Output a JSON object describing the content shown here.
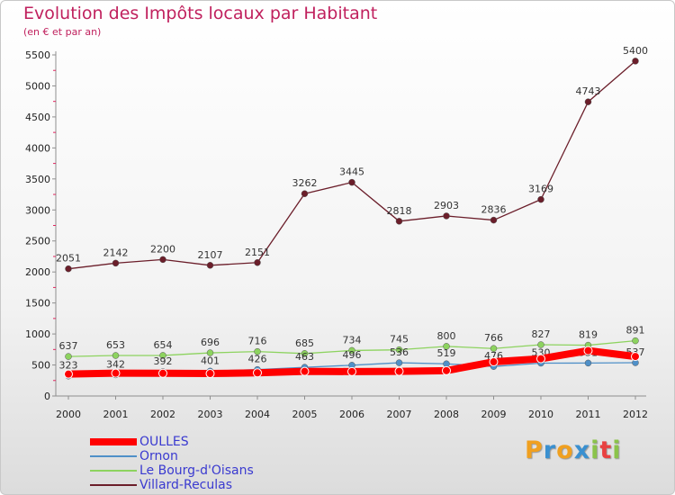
{
  "header": {
    "title": "Evolution des Impôts locaux par Habitant",
    "subtitle": "(en € et par an)"
  },
  "brand": {
    "logo_text": "Proxiti"
  },
  "colors": {
    "title": "#c0215e",
    "axis": "#8f8f8f",
    "tick_label": "#222222",
    "legend_label": "#3a3ad0",
    "grid_tick": "#e0245e"
  },
  "chart_data": {
    "type": "line",
    "title": "Evolution des Impôts locaux par Habitant",
    "subtitle": "(en € et par an)",
    "xlabel": "",
    "ylabel": "",
    "x": [
      2000,
      2001,
      2002,
      2003,
      2004,
      2005,
      2006,
      2007,
      2008,
      2009,
      2010,
      2011,
      2012
    ],
    "x_tick_labels": [
      "2000",
      "2001",
      "2002",
      "2003",
      "2004",
      "2005",
      "2006",
      "2007",
      "2008",
      "2009",
      "2010",
      "2011",
      "2012"
    ],
    "ylim": [
      0,
      5500
    ],
    "y_ticks": [
      0,
      500,
      1000,
      1500,
      2000,
      2500,
      3000,
      3500,
      4000,
      4500,
      5000,
      5500
    ],
    "y_tick_labels": [
      "0",
      "500",
      "1000",
      "1500",
      "2000",
      "2500",
      "3000",
      "3500",
      "4000",
      "4500",
      "5000",
      "5500"
    ],
    "grid": false,
    "legend_position": "bottom-left",
    "series": [
      {
        "name": "OULLES",
        "color": "#ff0000",
        "values": [
          353,
          368,
          366,
          362,
          373,
          397,
          394,
          398,
          409,
          551,
          601,
          731,
          637
        ],
        "labels": [
          "",
          "",
          "",
          "",
          "",
          "",
          "",
          "",
          "",
          "",
          "",
          "",
          ""
        ]
      },
      {
        "name": "Ornon",
        "color": "#4f90c8",
        "values": [
          323,
          342,
          392,
          401,
          426,
          463,
          496,
          536,
          519,
          476,
          530,
          531,
          537
        ],
        "labels": [
          "323",
          "342",
          "392",
          "401",
          "426",
          "463",
          "496",
          "536",
          "519",
          "476",
          "530",
          "531",
          "537"
        ]
      },
      {
        "name": "Le Bourg-d'Oisans",
        "color": "#8dd35f",
        "values": [
          637,
          653,
          654,
          696,
          716,
          685,
          734,
          745,
          800,
          766,
          827,
          819,
          891
        ],
        "labels": [
          "637",
          "653",
          "654",
          "696",
          "716",
          "685",
          "734",
          "745",
          "800",
          "766",
          "827",
          "819",
          "891"
        ]
      },
      {
        "name": "Villard-Reculas",
        "color": "#6b1e2a",
        "values": [
          2051,
          2142,
          2200,
          2107,
          2151,
          3262,
          3445,
          2818,
          2903,
          2836,
          3169,
          4743,
          5400
        ],
        "labels": [
          "2051",
          "2142",
          "2200",
          "2107",
          "2151",
          "3262",
          "3445",
          "2818",
          "2903",
          "2836",
          "3169",
          "4743",
          "5400"
        ]
      }
    ]
  }
}
